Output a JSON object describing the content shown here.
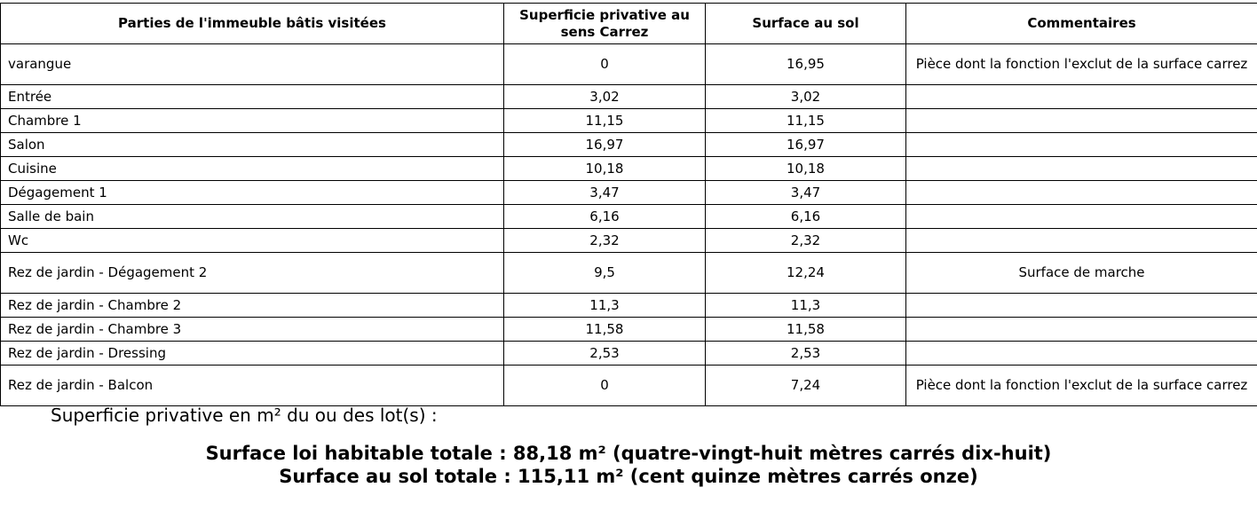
{
  "table": {
    "header": [
      "Parties de l'immeuble bâtis visitées",
      "Superficie privative au sens Carrez",
      "Surface au sol",
      "Commentaires"
    ],
    "rows": [
      {
        "room": "varangue",
        "carrez": "0",
        "sol": "16,95",
        "comment": "Pièce dont la fonction l'exclut de la surface carrez"
      },
      {
        "room": "Entrée",
        "carrez": "3,02",
        "sol": "3,02"
      },
      {
        "room": "Chambre 1",
        "carrez": "11,15",
        "sol": "11,15"
      },
      {
        "room": "Salon",
        "carrez": "16,97",
        "sol": "16,97"
      },
      {
        "room": "Cuisine",
        "carrez": "10,18",
        "sol": "10,18"
      },
      {
        "room": "Dégagement 1",
        "carrez": "3,47",
        "sol": "3,47"
      },
      {
        "room": "Salle de bain",
        "carrez": "6,16",
        "sol": "6,16"
      },
      {
        "room": "Wc",
        "carrez": "2,32",
        "sol": "2,32"
      },
      {
        "room": "Rez de jardin - Dégagement 2",
        "carrez": "9,5",
        "sol": "12,24",
        "comment": "Surface de marche"
      },
      {
        "room": "Rez de jardin - Chambre 2",
        "carrez": "11,3",
        "sol": "11,3"
      },
      {
        "room": "Rez de jardin - Chambre 3",
        "carrez": "11,58",
        "sol": "11,58"
      },
      {
        "room": "Rez de jardin - Dressing",
        "carrez": "2,53",
        "sol": "2,53"
      },
      {
        "room": "Rez de jardin - Balcon",
        "carrez": "0",
        "sol": "7,24",
        "comment": "Pièce dont la fonction l'exclut de la surface carrez"
      }
    ]
  },
  "footer": {
    "intro": "Superficie privative en m² du ou des lot(s) :",
    "lines": [
      "Surface loi habitable totale : 88,18 m² (quatre-vingt-huit mètres carrés dix-huit)",
      "Surface au sol totale : 115,11 m² (cent quinze mètres carrés onze)"
    ]
  }
}
